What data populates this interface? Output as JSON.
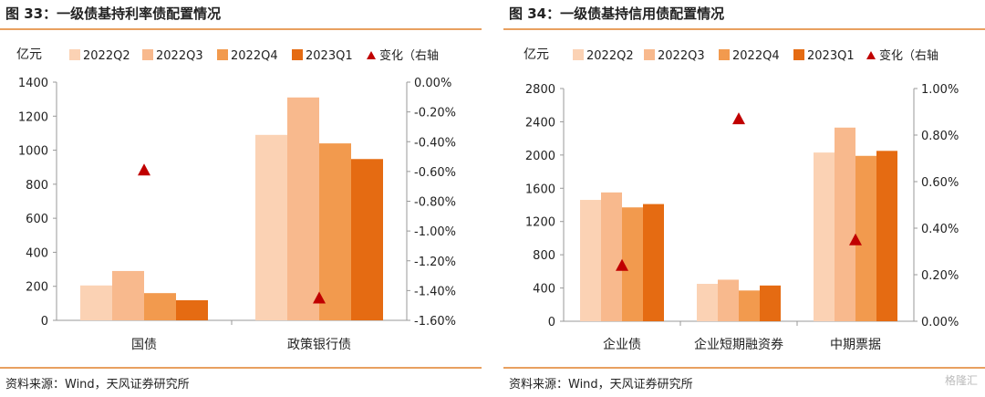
{
  "charts": [
    {
      "title": "图 33：一级债基持利率债配置情况",
      "source": "资料来源：Wind，天风证券研究所",
      "chart_data": {
        "type": "bar",
        "unit_left": "亿元",
        "categories": [
          "国债",
          "政策银行债"
        ],
        "series": [
          {
            "name": "2022Q2",
            "values": [
              205,
              1090
            ]
          },
          {
            "name": "2022Q3",
            "values": [
              290,
              1310
            ]
          },
          {
            "name": "2022Q4",
            "values": [
              160,
              1040
            ]
          },
          {
            "name": "2023Q1",
            "values": [
              118,
              948
            ]
          }
        ],
        "change": {
          "name": "变化（右轴",
          "values": [
            -0.59,
            -1.45
          ]
        },
        "left_axis": {
          "min": 0,
          "max": 1400,
          "ticks": [
            "0",
            "200",
            "400",
            "600",
            "800",
            "1000",
            "1200",
            "1400"
          ]
        },
        "right_axis": {
          "min": -1.6,
          "max": 0,
          "ticks": [
            "-1.60%",
            "-1.40%",
            "-1.20%",
            "-1.00%",
            "-0.80%",
            "-0.60%",
            "-0.40%",
            "-0.20%",
            "0.00%"
          ]
        },
        "legend_position": "top"
      }
    },
    {
      "title": "图 34：一级债基持信用债配置情况",
      "source": "资料来源：Wind，天风证券研究所",
      "chart_data": {
        "type": "bar",
        "unit_left": "亿元",
        "categories": [
          "企业债",
          "企业短期融资券",
          "中期票据"
        ],
        "series": [
          {
            "name": "2022Q2",
            "values": [
              1460,
              450,
              2030
            ]
          },
          {
            "name": "2022Q3",
            "values": [
              1550,
              500,
              2330
            ]
          },
          {
            "name": "2022Q4",
            "values": [
              1370,
              370,
              1990
            ]
          },
          {
            "name": "2023Q1",
            "values": [
              1410,
              430,
              2050
            ]
          }
        ],
        "change": {
          "name": "变化（右轴",
          "values": [
            0.24,
            0.87,
            0.35
          ]
        },
        "left_axis": {
          "min": 0,
          "max": 2800,
          "ticks": [
            "0",
            "400",
            "800",
            "1200",
            "1600",
            "2000",
            "2400",
            "2800"
          ]
        },
        "right_axis": {
          "min": 0,
          "max": 1.0,
          "ticks": [
            "0.00%",
            "0.20%",
            "0.40%",
            "0.60%",
            "0.80%",
            "1.00%"
          ]
        },
        "legend_position": "top"
      }
    }
  ],
  "colors": [
    "#fbd2b4",
    "#f8b98d",
    "#f29a4e",
    "#e56b12"
  ],
  "marker_color": "#c00000",
  "watermark": "格隆汇"
}
